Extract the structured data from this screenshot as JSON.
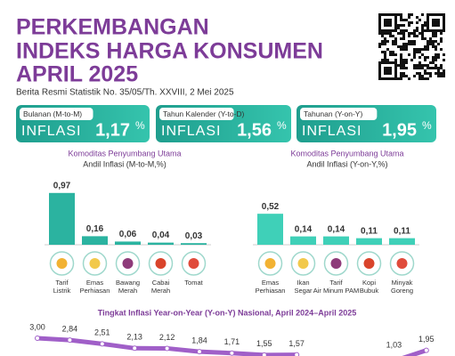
{
  "header": {
    "title_lines": [
      "PERKEMBANGAN",
      "INDEKS HARGA KONSUMEN",
      "APRIL 2025"
    ],
    "subtitle": "Berita Resmi Statistik No. 35/05/Th. XXVIII, 2 Mei 2025"
  },
  "stats": [
    {
      "label": "Bulanan (M-to-M)",
      "name": "INFLASI",
      "value": "1,17",
      "unit": "%"
    },
    {
      "label": "Tahun Kalender (Y-to-D)",
      "name": "INFLASI",
      "value": "1,56",
      "unit": "%"
    },
    {
      "label": "Tahunan (Y-on-Y)",
      "name": "INFLASI",
      "value": "1,95",
      "unit": "%"
    }
  ],
  "chart_data": [
    {
      "type": "bar",
      "title": "Komoditas Penyumbang Utama",
      "subtitle": "Andil Inflasi (M-to-M,%)",
      "color": "#2bb3a0",
      "categories": [
        "Tarif Listrik",
        "Emas Perhiasan",
        "Bawang Merah",
        "Cabai Merah",
        "Tomat"
      ],
      "values": [
        0.97,
        0.16,
        0.06,
        0.04,
        0.03
      ],
      "value_labels": [
        "0,97",
        "0,16",
        "0,06",
        "0,04",
        "0,03"
      ]
    },
    {
      "type": "bar",
      "title": "Komoditas Penyumbang Utama",
      "subtitle": "Andil Inflasi (Y-on-Y,%)",
      "color": "#3fd0b8",
      "categories": [
        "Emas Perhiasan",
        "Ikan Segar",
        "Tarif Air Minum PAM",
        "Kopi Bubuk",
        "Minyak Goreng"
      ],
      "values": [
        0.52,
        0.14,
        0.14,
        0.11,
        0.11
      ],
      "value_labels": [
        "0,52",
        "0,14",
        "0,14",
        "0,11",
        "0,11"
      ]
    },
    {
      "type": "line",
      "title": "Tingkat Inflasi Year-on-Year (Y-on-Y) Nasional, April 2024–April 2025",
      "color": "#a05fc8",
      "values": [
        3.0,
        2.84,
        2.51,
        2.13,
        2.12,
        1.84,
        1.71,
        1.55,
        1.57,
        null,
        null,
        1.03,
        1.95
      ],
      "value_labels": [
        "3,00",
        "2,84",
        "2,51",
        "2,13",
        "2,12",
        "1,84",
        "1,71",
        "1,55",
        "1,57",
        null,
        null,
        "1,03",
        "1,95"
      ]
    }
  ]
}
